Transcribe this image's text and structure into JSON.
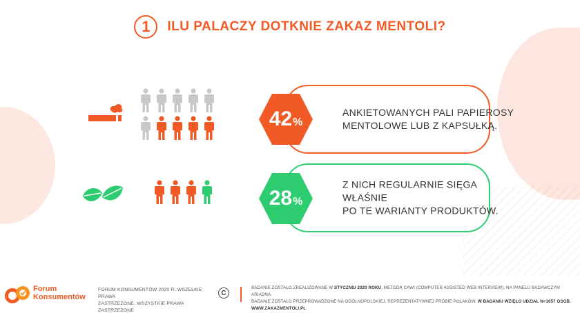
{
  "header": {
    "number": "1",
    "title": "ILU PALACZY DOTKNIE ZAKAZ MENTOLI?"
  },
  "stats": [
    {
      "value": "42",
      "unit": "%",
      "fraction": 0.42,
      "text_line1": "ANKIETOWANYCH PALI PAPIEROSY",
      "text_line2": "MENTOLOWE LUB Z KAPSUŁKĄ.",
      "icon": "cigarette-icon",
      "accent": "#f15a24",
      "figures": {
        "total": 10,
        "highlighted": 4
      }
    },
    {
      "value": "28",
      "unit": "%",
      "fraction": 0.28,
      "text_line1": "Z NICH REGULARNIE SIĘGA WŁAŚNIE",
      "text_line2": "PO TE WARIANTY PRODUKTÓW.",
      "icon": "leaves-icon",
      "accent": "#2ecc71",
      "figures": {
        "total": 4,
        "highlighted": 1
      }
    }
  ],
  "colors": {
    "orange": "#f15a24",
    "green": "#2ecc71",
    "gray": "#c8c8c8"
  },
  "footer": {
    "logo_line1": "Forum",
    "logo_line2": "Konsumentów",
    "copyright_line1": "FORUM KONSUMENTÓW 2020 R. WSZELKIE PRAWA",
    "copyright_line2": "ZASTRZEŻONE. WSZYSTKIE PRAWA ZASTRZEŻONE",
    "copyright_symbol": "C",
    "method_part1": "BADANIE ZOSTAŁO ZREALIZOWANE W ",
    "method_bold1": "STYCZNIU 2020 ROKU",
    "method_part2": ", METODĄ CAWI (COMPUTER ASSISTED WEB INTERVIEW), NA PANELU BADAWCZYM ARIADNA.",
    "method_line2a": "BADANIE ZOSTAŁO PRZEPROWADZONE NA OGÓLNOPOLSKIEJ, REPREZENTATYWNEJ PRÓBIE POLAKÓW. ",
    "method_bold2": "W BADANIU WZIĘŁO UDZIAŁ N=1057 OSÓB.",
    "method_line3": "WWW.ZAKAZMENTOLI.PL"
  }
}
